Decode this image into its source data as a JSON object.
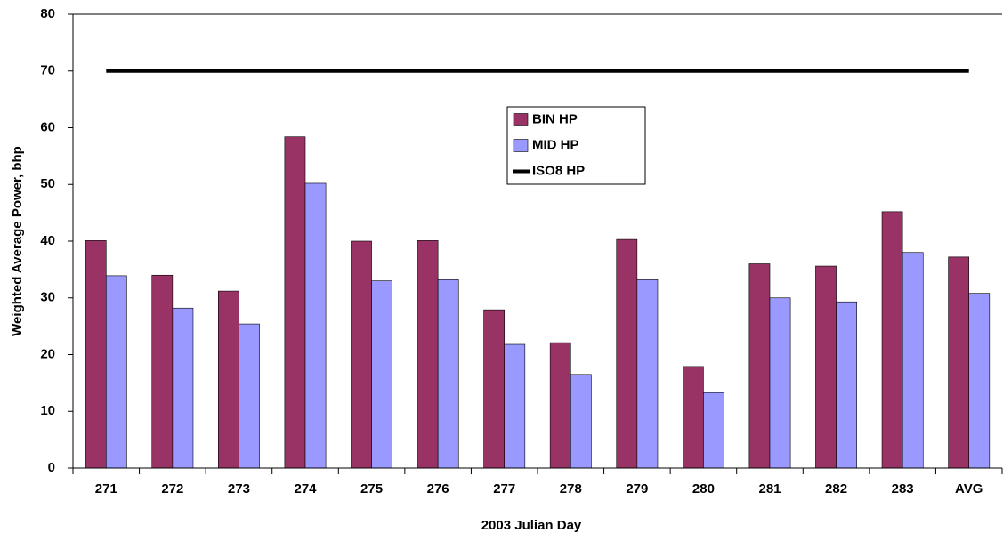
{
  "chart_data": {
    "type": "bar",
    "x_label": "2003 Julian Day",
    "y_label": "Weighted Average Power, bhp",
    "categories": [
      "271",
      "272",
      "273",
      "274",
      "275",
      "276",
      "277",
      "278",
      "279",
      "280",
      "281",
      "282",
      "283",
      "AVG"
    ],
    "series": [
      {
        "name": "BIN HP",
        "color": "#993366",
        "type": "bar",
        "values": [
          40.1,
          34.0,
          31.2,
          58.4,
          40.0,
          40.1,
          27.9,
          22.1,
          40.3,
          17.9,
          36.0,
          35.6,
          45.2,
          37.2
        ]
      },
      {
        "name": "MID HP",
        "color": "#9999ff",
        "type": "bar",
        "values": [
          33.9,
          28.2,
          25.4,
          50.2,
          33.0,
          33.2,
          21.8,
          16.5,
          33.2,
          13.3,
          30.0,
          29.3,
          38.0,
          30.8
        ]
      },
      {
        "name": "ISO8 HP",
        "color": "#000000",
        "type": "line",
        "values": [
          70,
          70,
          70,
          70,
          70,
          70,
          70,
          70,
          70,
          70,
          70,
          70,
          70,
          70
        ]
      }
    ],
    "ylim": [
      0,
      80
    ],
    "yticks": [
      0,
      10,
      20,
      30,
      40,
      50,
      60,
      70,
      80
    ],
    "grid": false,
    "legend": "top-center"
  }
}
